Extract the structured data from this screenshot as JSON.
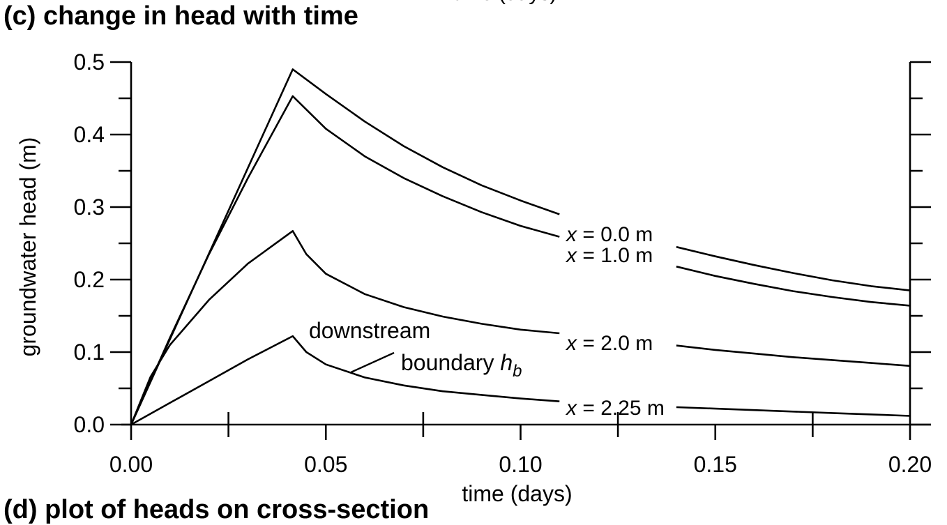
{
  "panel_title": "(c)  change in head with time",
  "top_cut_text": "time (days)",
  "bottom_cut_text": "(d)  plot of heads on cross-section",
  "chart_data": {
    "type": "line",
    "title": "(c)  change in head with time",
    "xlabel": "time (days)",
    "ylabel": "groundwater head (m)",
    "xlim": [
      0.0,
      0.2
    ],
    "ylim": [
      0.0,
      0.5
    ],
    "x_ticks": [
      "0.00",
      "0.05",
      "0.10",
      "0.15",
      "0.20"
    ],
    "y_ticks": [
      "0.0",
      "0.1",
      "0.2",
      "0.3",
      "0.4",
      "0.5"
    ],
    "grid": false,
    "series": [
      {
        "name": "x = 0.0 m",
        "label_var": "x",
        "label_rest": " = 0.0 m",
        "x": [
          0,
          0.01,
          0.02,
          0.03,
          0.0415,
          0.05,
          0.06,
          0.07,
          0.08,
          0.09,
          0.1,
          0.11,
          0.14,
          0.15,
          0.16,
          0.17,
          0.18,
          0.19,
          0.2
        ],
        "y": [
          0,
          0.118,
          0.236,
          0.354,
          0.49,
          0.456,
          0.418,
          0.384,
          0.355,
          0.33,
          0.309,
          0.29,
          0.245,
          0.232,
          0.22,
          0.209,
          0.199,
          0.191,
          0.185
        ]
      },
      {
        "name": "x = 1.0 m",
        "label_var": "x",
        "label_rest": " = 1.0 m",
        "x": [
          0,
          0.01,
          0.02,
          0.03,
          0.0415,
          0.05,
          0.06,
          0.07,
          0.08,
          0.09,
          0.1,
          0.11,
          0.14,
          0.15,
          0.16,
          0.17,
          0.18,
          0.19,
          0.2
        ],
        "y": [
          0,
          0.12,
          0.235,
          0.34,
          0.453,
          0.408,
          0.37,
          0.34,
          0.315,
          0.293,
          0.274,
          0.259,
          0.218,
          0.205,
          0.194,
          0.184,
          0.176,
          0.169,
          0.164
        ]
      },
      {
        "name": "x = 2.0 m",
        "label_var": "x",
        "label_rest": " = 2.0 m",
        "x": [
          0,
          0.005,
          0.01,
          0.02,
          0.03,
          0.0415,
          0.045,
          0.05,
          0.06,
          0.07,
          0.08,
          0.09,
          0.1,
          0.11,
          0.14,
          0.15,
          0.16,
          0.17,
          0.18,
          0.19,
          0.2
        ],
        "y": [
          0,
          0.066,
          0.11,
          0.172,
          0.222,
          0.267,
          0.235,
          0.208,
          0.18,
          0.162,
          0.149,
          0.139,
          0.131,
          0.126,
          0.109,
          0.103,
          0.098,
          0.093,
          0.089,
          0.085,
          0.081
        ]
      },
      {
        "name": "x = 2.25 m",
        "label_var": "x",
        "label_rest": " = 2.25 m",
        "x": [
          0,
          0.01,
          0.02,
          0.03,
          0.0415,
          0.045,
          0.05,
          0.06,
          0.07,
          0.08,
          0.09,
          0.1,
          0.11,
          0.14,
          0.15,
          0.16,
          0.17,
          0.18,
          0.19,
          0.2
        ],
        "y": [
          0,
          0.03,
          0.06,
          0.09,
          0.122,
          0.1,
          0.083,
          0.065,
          0.054,
          0.046,
          0.041,
          0.036,
          0.032,
          0.024,
          0.022,
          0.02,
          0.018,
          0.016,
          0.014,
          0.012
        ]
      }
    ],
    "series_label_positions": [
      "right of curve near x = 0.11–0.14",
      "right of curve near x = 0.11–0.14",
      "right of curve near x = 0.11–0.14",
      "right of curve near x = 0.11–0.14"
    ],
    "annotation": {
      "line1": "downstream",
      "line2": "boundary ",
      "symbol": "h",
      "subscript": "b",
      "points_to": "x = 2.25 m"
    }
  }
}
